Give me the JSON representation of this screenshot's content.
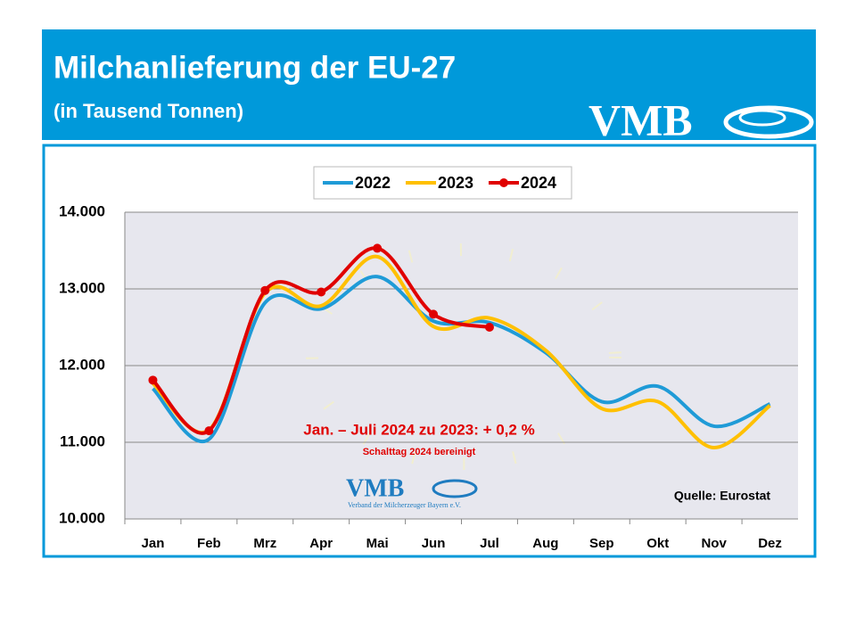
{
  "header": {
    "title": "Milchanlieferung der EU-27",
    "subtitle": "(in Tausend Tonnen)",
    "logo": "VMB"
  },
  "chart_data": {
    "type": "line",
    "categories": [
      "Jan",
      "Feb",
      "Mrz",
      "Apr",
      "Mai",
      "Jun",
      "Jul",
      "Aug",
      "Sep",
      "Okt",
      "Nov",
      "Dez"
    ],
    "series": [
      {
        "name": "2022",
        "color": "#1f9bd7",
        "values": [
          11700,
          11040,
          12820,
          12740,
          13160,
          12580,
          12560,
          12170,
          11530,
          11730,
          11210,
          11500
        ]
      },
      {
        "name": "2023",
        "color": "#ffc000",
        "values": [
          11770,
          11160,
          12950,
          12780,
          13420,
          12510,
          12620,
          12200,
          11440,
          11530,
          10930,
          11480
        ]
      },
      {
        "name": "2024",
        "color": "#e00000",
        "markers": true,
        "values": [
          11810,
          11150,
          12980,
          12960,
          13530,
          12670,
          12500,
          null,
          null,
          null,
          null,
          null
        ]
      }
    ],
    "ylim": [
      10000,
      14000
    ],
    "yticks": [
      {
        "value": 10000,
        "label": "10.000"
      },
      {
        "value": 11000,
        "label": "11.000"
      },
      {
        "value": 12000,
        "label": "12.000"
      },
      {
        "value": 13000,
        "label": "13.000"
      },
      {
        "value": 14000,
        "label": "14.000"
      }
    ],
    "grid": true,
    "legend": "top",
    "annotations": [
      "Jan. – Juli 2024 zu 2023: + 0,2 %",
      "Schalttag 2024 bereinigt",
      "Quelle: Eurostat"
    ],
    "logo": "VMB",
    "logo_caption": "Verband der Milcherzeuger Bayern e.V."
  }
}
